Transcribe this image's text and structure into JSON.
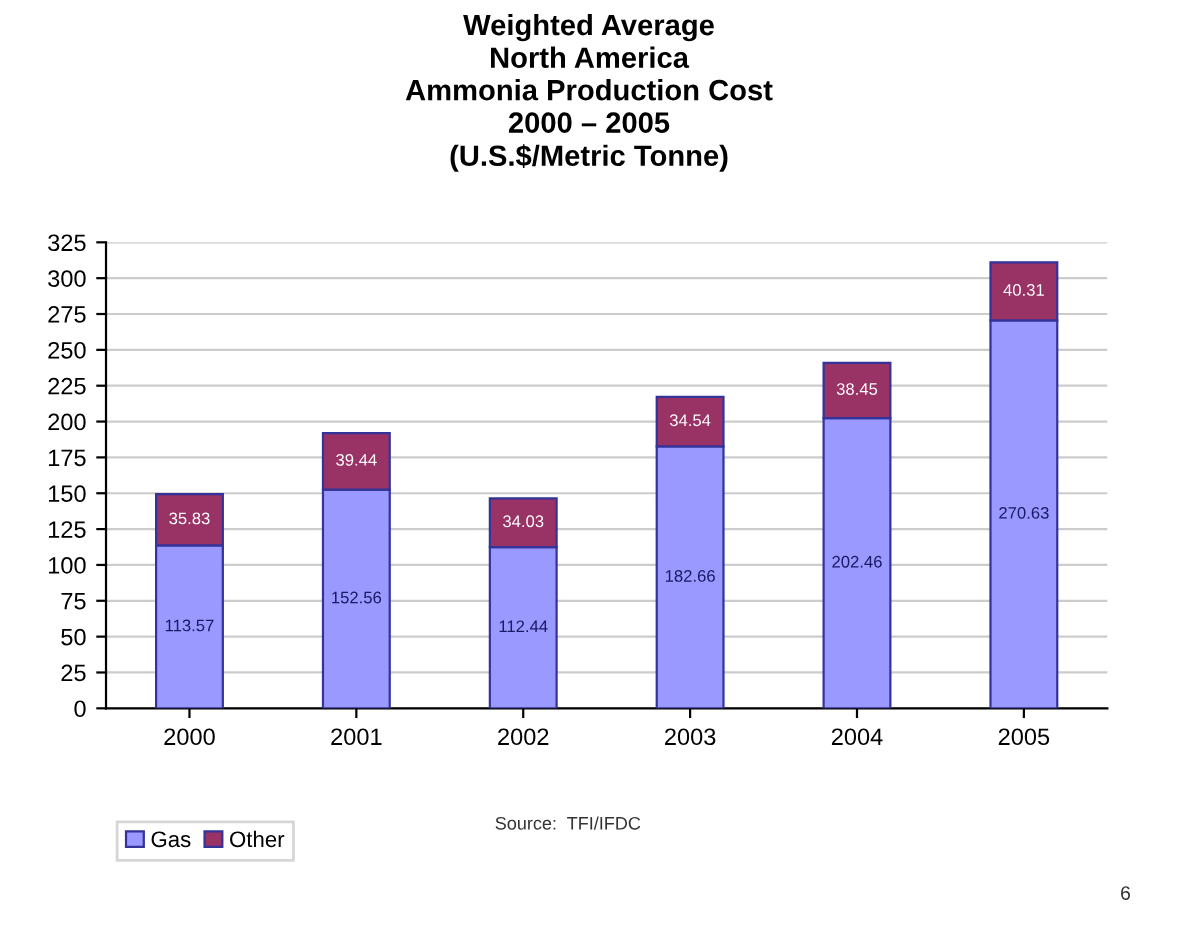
{
  "chart_data": {
    "type": "bar",
    "title": "Weighted Average\nNorth America\nAmmonia Production Cost\n2000 – 2005\n(U.S.$/Metric Tonne)",
    "categories": [
      "2000",
      "2001",
      "2002",
      "2003",
      "2004",
      "2005"
    ],
    "stacked": true,
    "series": [
      {
        "name": "Gas",
        "color": "#9999ff",
        "values": [
          113.57,
          152.56,
          112.44,
          182.66,
          202.46,
          270.63
        ]
      },
      {
        "name": "Other",
        "color": "#993366",
        "values": [
          35.83,
          39.44,
          34.03,
          34.54,
          38.45,
          40.31
        ]
      }
    ],
    "ylim": [
      0,
      325
    ],
    "yticks": [
      0,
      25,
      50,
      75,
      100,
      125,
      150,
      175,
      200,
      225,
      250,
      275,
      300,
      325
    ],
    "grid": "y",
    "legend": "bottom left",
    "data_labels": true,
    "annotations": [
      "Source:  TFI/IFDC",
      "6"
    ]
  }
}
